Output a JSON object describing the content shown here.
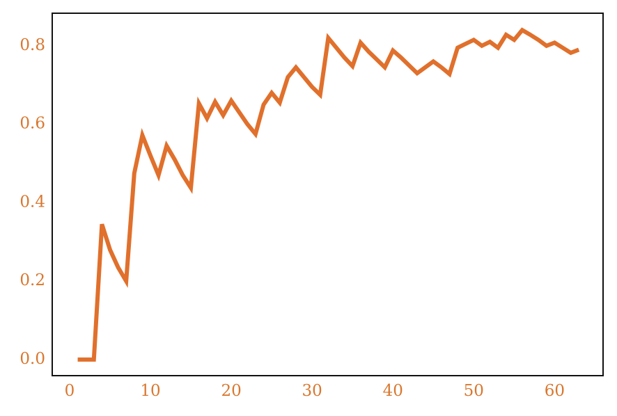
{
  "chart_data": {
    "type": "line",
    "x": [
      1,
      2,
      3,
      4,
      5,
      6,
      7,
      8,
      9,
      10,
      11,
      12,
      13,
      14,
      15,
      16,
      17,
      18,
      19,
      20,
      21,
      22,
      23,
      24,
      25,
      26,
      27,
      28,
      29,
      30,
      31,
      32,
      33,
      34,
      35,
      36,
      37,
      38,
      39,
      40,
      41,
      42,
      43,
      44,
      45,
      46,
      47,
      48,
      49,
      50,
      51,
      52,
      53,
      54,
      55,
      56,
      57,
      58,
      59,
      60,
      61,
      62,
      63
    ],
    "values": [
      0,
      0,
      0,
      0.345,
      0.28,
      0.235,
      0.2,
      0.475,
      0.572,
      0.52,
      0.47,
      0.545,
      0.51,
      0.47,
      0.438,
      0.653,
      0.615,
      0.657,
      0.623,
      0.66,
      0.63,
      0.6,
      0.575,
      0.65,
      0.68,
      0.655,
      0.72,
      0.745,
      0.72,
      0.695,
      0.675,
      0.82,
      0.795,
      0.77,
      0.748,
      0.808,
      0.785,
      0.765,
      0.745,
      0.788,
      0.77,
      0.75,
      0.73,
      0.745,
      0.76,
      0.745,
      0.728,
      0.795,
      0.805,
      0.815,
      0.8,
      0.81,
      0.795,
      0.828,
      0.815,
      0.84,
      0.828,
      0.815,
      0.8,
      0.808,
      0.795,
      0.782,
      0.79
    ],
    "color": "#e0702c",
    "xlim": [
      -2.15,
      66.0
    ],
    "ylim": [
      -0.041,
      0.883
    ],
    "xticks": [
      0,
      10,
      20,
      30,
      40,
      50,
      60
    ],
    "yticks": [
      {
        "value": 0,
        "label": "0.0"
      },
      0.2,
      0.4,
      0.6,
      0.8
    ],
    "tick_color": "#d9772f",
    "grid": false
  }
}
